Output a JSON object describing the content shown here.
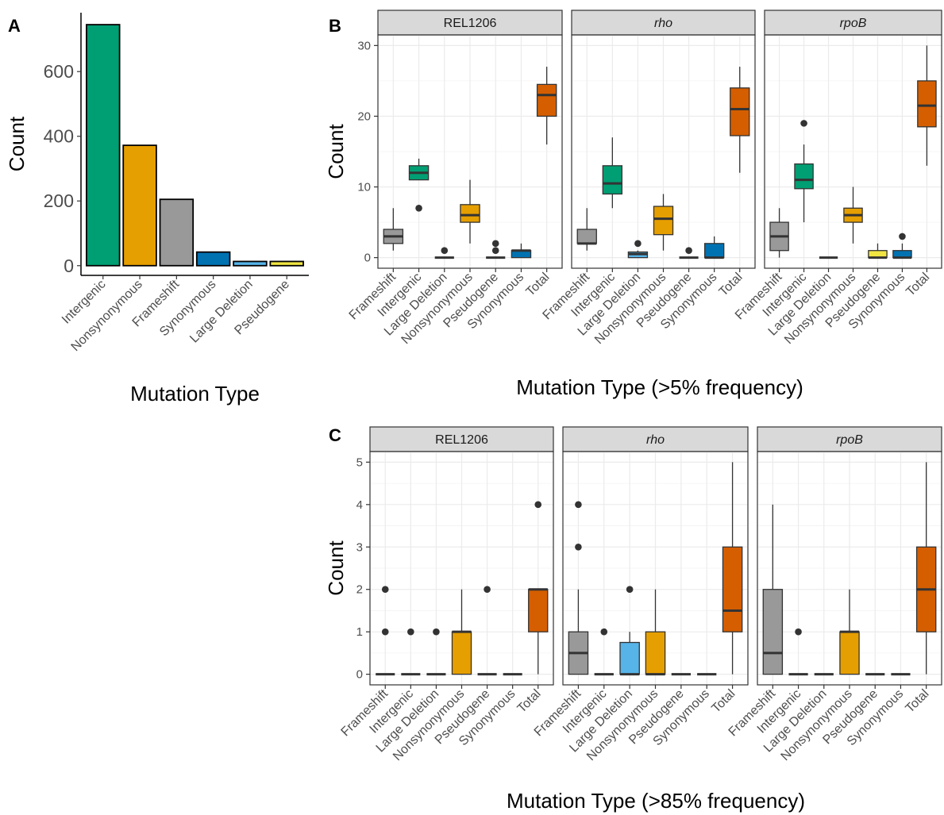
{
  "colors": {
    "Frameshift": "#999999",
    "Intergenic": "#009E73",
    "Large Deletion": "#56B4E9",
    "Nonsynonymous": "#E69F00",
    "Pseudogene": "#F0E442",
    "Synonymous": "#0072B2",
    "Total": "#D55E00"
  },
  "chart_data": [
    {
      "panel": "A",
      "type": "bar",
      "categories": [
        "Intergenic",
        "Nonsynonymous",
        "Frameshift",
        "Synonymous",
        "Large Deletion",
        "Pseudogene"
      ],
      "values": [
        745,
        372,
        205,
        42,
        13,
        13
      ],
      "xlabel": "Mutation Type",
      "ylabel": "Count",
      "ylim": [
        -30,
        782
      ],
      "yticks": [
        0,
        200,
        400,
        600
      ]
    },
    {
      "panel": "B",
      "type": "box",
      "categories": [
        "Frameshift",
        "Intergenic",
        "Large Deletion",
        "Nonsynonymous",
        "Pseudogene",
        "Synonymous",
        "Total"
      ],
      "xlabel": "Mutation Type (>5% frequency)",
      "ylabel": "Count",
      "ylim": [
        -1.5,
        31.5
      ],
      "yticks": [
        0,
        10,
        20,
        30
      ],
      "facets": [
        {
          "label": "REL1206",
          "italic": false,
          "boxes": [
            {
              "category": "Frameshift",
              "min": 1,
              "q1": 2,
              "median": 3,
              "q3": 4,
              "max": 7,
              "outliers": []
            },
            {
              "category": "Intergenic",
              "min": 11,
              "q1": 11,
              "median": 12,
              "q3": 13,
              "max": 14,
              "outliers": [
                7
              ]
            },
            {
              "category": "Large Deletion",
              "min": 0,
              "q1": 0,
              "median": 0,
              "q3": 0,
              "max": 0,
              "outliers": [
                1
              ]
            },
            {
              "category": "Nonsynonymous",
              "min": 2,
              "q1": 5,
              "median": 6,
              "q3": 7.5,
              "max": 11,
              "outliers": []
            },
            {
              "category": "Pseudogene",
              "min": 0,
              "q1": 0,
              "median": 0,
              "q3": 0,
              "max": 0,
              "outliers": [
                1,
                2
              ]
            },
            {
              "category": "Synonymous",
              "min": 0,
              "q1": 0,
              "median": 1,
              "q3": 1,
              "max": 2,
              "outliers": []
            },
            {
              "category": "Total",
              "min": 16,
              "q1": 20,
              "median": 23,
              "q3": 24.5,
              "max": 27,
              "outliers": []
            }
          ]
        },
        {
          "label": "rho",
          "italic": true,
          "boxes": [
            {
              "category": "Frameshift",
              "min": 1,
              "q1": 2,
              "median": 2,
              "q3": 4,
              "max": 7,
              "outliers": []
            },
            {
              "category": "Intergenic",
              "min": 7,
              "q1": 9,
              "median": 10.5,
              "q3": 13,
              "max": 17,
              "outliers": []
            },
            {
              "category": "Large Deletion",
              "min": 0,
              "q1": 0,
              "median": 0.5,
              "q3": 0.8,
              "max": 1,
              "outliers": [
                2
              ]
            },
            {
              "category": "Nonsynonymous",
              "min": 1,
              "q1": 3.25,
              "median": 5.5,
              "q3": 7.25,
              "max": 9,
              "outliers": []
            },
            {
              "category": "Pseudogene",
              "min": 0,
              "q1": 0,
              "median": 0,
              "q3": 0,
              "max": 0,
              "outliers": [
                1
              ]
            },
            {
              "category": "Synonymous",
              "min": 0,
              "q1": 0,
              "median": 0,
              "q3": 2,
              "max": 3,
              "outliers": []
            },
            {
              "category": "Total",
              "min": 12,
              "q1": 17.25,
              "median": 21,
              "q3": 24,
              "max": 27,
              "outliers": []
            }
          ]
        },
        {
          "label": "rpoB",
          "italic": true,
          "boxes": [
            {
              "category": "Frameshift",
              "min": 0,
              "q1": 1,
              "median": 3,
              "q3": 5,
              "max": 7,
              "outliers": []
            },
            {
              "category": "Intergenic",
              "min": 5,
              "q1": 9.75,
              "median": 11,
              "q3": 13.25,
              "max": 16,
              "outliers": [
                19
              ]
            },
            {
              "category": "Large Deletion",
              "min": 0,
              "q1": 0,
              "median": 0,
              "q3": 0,
              "max": 0,
              "outliers": []
            },
            {
              "category": "Nonsynonymous",
              "min": 2,
              "q1": 5,
              "median": 6,
              "q3": 7,
              "max": 10,
              "outliers": []
            },
            {
              "category": "Pseudogene",
              "min": 0,
              "q1": 0,
              "median": 0,
              "q3": 1,
              "max": 2,
              "outliers": []
            },
            {
              "category": "Synonymous",
              "min": 0,
              "q1": 0,
              "median": 0,
              "q3": 1,
              "max": 2,
              "outliers": [
                3
              ]
            },
            {
              "category": "Total",
              "min": 13,
              "q1": 18.5,
              "median": 21.5,
              "q3": 25,
              "max": 30,
              "outliers": []
            }
          ]
        }
      ]
    },
    {
      "panel": "C",
      "type": "box",
      "categories": [
        "Frameshift",
        "Intergenic",
        "Large Deletion",
        "Nonsynonymous",
        "Pseudogene",
        "Synonymous",
        "Total"
      ],
      "xlabel": "Mutation Type (>85% frequency)",
      "ylabel": "Count",
      "ylim": [
        -0.25,
        5.25
      ],
      "yticks": [
        0,
        1,
        2,
        3,
        4,
        5
      ],
      "facets": [
        {
          "label": "REL1206",
          "italic": false,
          "boxes": [
            {
              "category": "Frameshift",
              "min": 0,
              "q1": 0,
              "median": 0,
              "q3": 0,
              "max": 0,
              "outliers": [
                1,
                2
              ]
            },
            {
              "category": "Intergenic",
              "min": 0,
              "q1": 0,
              "median": 0,
              "q3": 0,
              "max": 0,
              "outliers": [
                1
              ]
            },
            {
              "category": "Large Deletion",
              "min": 0,
              "q1": 0,
              "median": 0,
              "q3": 0,
              "max": 0,
              "outliers": [
                1
              ]
            },
            {
              "category": "Nonsynonymous",
              "min": 0,
              "q1": 0,
              "median": 1,
              "q3": 1,
              "max": 2,
              "outliers": []
            },
            {
              "category": "Pseudogene",
              "min": 0,
              "q1": 0,
              "median": 0,
              "q3": 0,
              "max": 0,
              "outliers": [
                2
              ]
            },
            {
              "category": "Synonymous",
              "min": 0,
              "q1": 0,
              "median": 0,
              "q3": 0,
              "max": 0,
              "outliers": []
            },
            {
              "category": "Total",
              "min": 0,
              "q1": 1,
              "median": 2,
              "q3": 2,
              "max": 2,
              "outliers": [
                4
              ]
            }
          ]
        },
        {
          "label": "rho",
          "italic": true,
          "boxes": [
            {
              "category": "Frameshift",
              "min": 0,
              "q1": 0,
              "median": 0.5,
              "q3": 1,
              "max": 2,
              "outliers": [
                3,
                4
              ]
            },
            {
              "category": "Intergenic",
              "min": 0,
              "q1": 0,
              "median": 0,
              "q3": 0,
              "max": 0,
              "outliers": [
                1
              ]
            },
            {
              "category": "Large Deletion",
              "min": 0,
              "q1": 0,
              "median": 0,
              "q3": 0.75,
              "max": 1,
              "outliers": [
                2
              ]
            },
            {
              "category": "Nonsynonymous",
              "min": 0,
              "q1": 0,
              "median": 0,
              "q3": 1,
              "max": 2,
              "outliers": []
            },
            {
              "category": "Pseudogene",
              "min": 0,
              "q1": 0,
              "median": 0,
              "q3": 0,
              "max": 0,
              "outliers": []
            },
            {
              "category": "Synonymous",
              "min": 0,
              "q1": 0,
              "median": 0,
              "q3": 0,
              "max": 0,
              "outliers": []
            },
            {
              "category": "Total",
              "min": 0,
              "q1": 1,
              "median": 1.5,
              "q3": 3,
              "max": 5,
              "outliers": []
            }
          ]
        },
        {
          "label": "rpoB",
          "italic": true,
          "boxes": [
            {
              "category": "Frameshift",
              "min": 0,
              "q1": 0,
              "median": 0.5,
              "q3": 2,
              "max": 4,
              "outliers": []
            },
            {
              "category": "Intergenic",
              "min": 0,
              "q1": 0,
              "median": 0,
              "q3": 0,
              "max": 0,
              "outliers": [
                1
              ]
            },
            {
              "category": "Large Deletion",
              "min": 0,
              "q1": 0,
              "median": 0,
              "q3": 0,
              "max": 0,
              "outliers": []
            },
            {
              "category": "Nonsynonymous",
              "min": 0,
              "q1": 0,
              "median": 1,
              "q3": 1,
              "max": 2,
              "outliers": []
            },
            {
              "category": "Pseudogene",
              "min": 0,
              "q1": 0,
              "median": 0,
              "q3": 0,
              "max": 0,
              "outliers": []
            },
            {
              "category": "Synonymous",
              "min": 0,
              "q1": 0,
              "median": 0,
              "q3": 0,
              "max": 0,
              "outliers": []
            },
            {
              "category": "Total",
              "min": 0,
              "q1": 1,
              "median": 2,
              "q3": 3,
              "max": 5,
              "outliers": []
            }
          ]
        }
      ]
    }
  ]
}
